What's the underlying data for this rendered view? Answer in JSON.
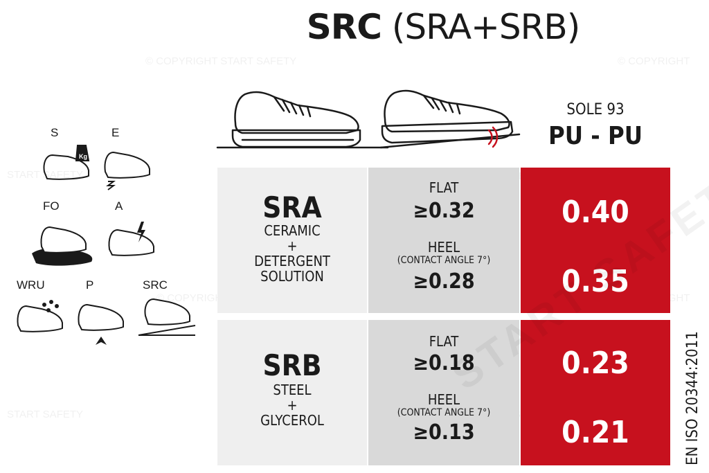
{
  "title": {
    "bold": "SRC",
    "light": "(SRA+SRB)"
  },
  "sole": {
    "label": "SOLE 93",
    "value": "PU - PU"
  },
  "standard": "EN ISO 20344:2011",
  "watermarks": {
    "copyright": "© COPYRIGHT START SAFETY",
    "copyright_short": "© COPYRIGHT",
    "brand": "START SAFETY",
    "big": "START SAFETY"
  },
  "icons": [
    {
      "label": "S",
      "icon": "weight-shoe-icon"
    },
    {
      "label": "E",
      "icon": "energy-absorption-shoe-icon"
    },
    {
      "label": "FO",
      "icon": "fuel-oil-shoe-icon"
    },
    {
      "label": "A",
      "icon": "antistatic-shoe-icon"
    },
    {
      "label": "WRU",
      "icon": "water-resistant-shoe-icon"
    },
    {
      "label": "P",
      "icon": "puncture-resistant-shoe-icon"
    },
    {
      "label": "SRC",
      "icon": "slip-resistant-shoe-icon"
    }
  ],
  "rows": [
    {
      "code": "SRA",
      "desc": [
        "CERAMIC",
        "+",
        "DETERGENT",
        "SOLUTION"
      ],
      "flat_label": "FLAT",
      "flat_threshold": "≥0.32",
      "heel_label": "HEEL",
      "heel_note": "(CONTACT ANGLE 7°)",
      "heel_threshold": "≥0.28",
      "flat_value": "0.40",
      "heel_value": "0.35"
    },
    {
      "code": "SRB",
      "desc": [
        "STEEL",
        "+",
        "GLYCEROL"
      ],
      "flat_label": "FLAT",
      "flat_threshold": "≥0.18",
      "heel_label": "HEEL",
      "heel_note": "(CONTACT ANGLE 7°)",
      "heel_threshold": "≥0.13",
      "flat_value": "0.23",
      "heel_value": "0.21"
    }
  ],
  "colors": {
    "accent": "#c7111e",
    "light_gray": "#efefef",
    "mid_gray": "#d9d9d9",
    "text": "#1a1a1a"
  }
}
